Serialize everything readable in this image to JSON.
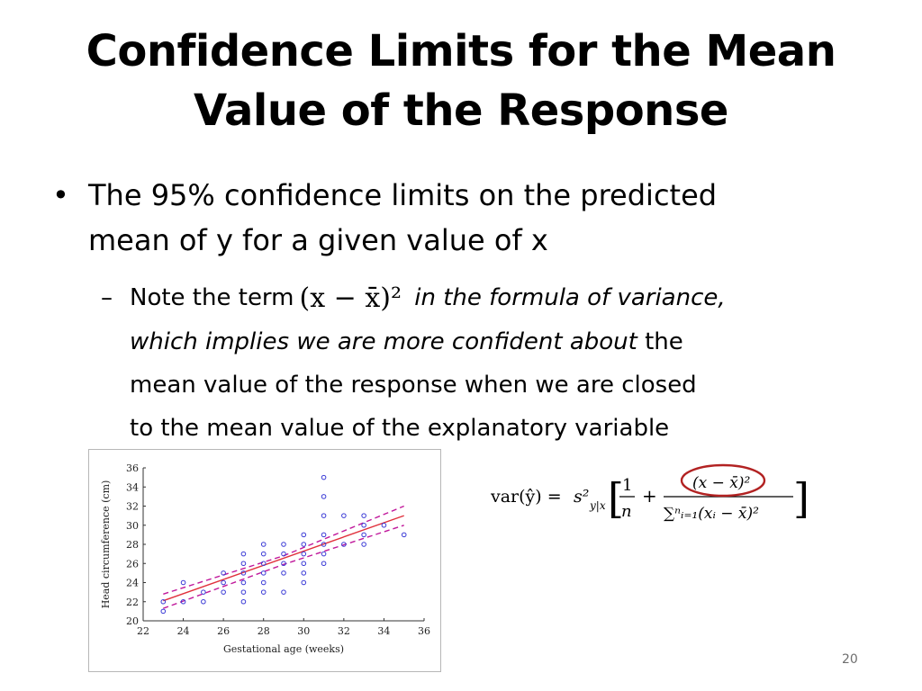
{
  "slide": {
    "title_line1": "Confidence Limits for the Mean",
    "title_line2": "Value of the Response",
    "bullet_symbol": "•",
    "bullet1_line1": "The 95% confidence limits on the predicted",
    "bullet1_line2": "mean of y for a given value of x",
    "sub_dash": "–",
    "sub_note_start": "Note the term",
    "sub_term": "(x − x̄)²",
    "sub_italic_a": "in the formula of variance,",
    "sub_italic_b": "which implies we are more confident about",
    "sub_tail_1": " the",
    "sub_line3": "mean value of the response when we are closed",
    "sub_line4": "to the mean value of the explanatory variable",
    "page_number": "20"
  },
  "formula": {
    "lhs": "var(ŷ) =",
    "coeff": "s²",
    "coeff_sub": "y|x",
    "numerator1": "1",
    "denominator1": "n",
    "plus": "+",
    "numerator2": "(x − x̄)²",
    "denominator2": "∑ⁿᵢ₌₁(xᵢ − x̄)²",
    "circle_color": "#b22222"
  },
  "chart_data": {
    "type": "scatter",
    "title": "",
    "xlabel": "Gestational age (weeks)",
    "ylabel": "Head circumference (cm)",
    "xlim": [
      22,
      36
    ],
    "ylim": [
      20,
      36
    ],
    "xticks": [
      22,
      24,
      26,
      28,
      30,
      32,
      34,
      36
    ],
    "yticks": [
      20,
      22,
      24,
      26,
      28,
      30,
      32,
      34,
      36
    ],
    "grid": false,
    "point_color": "#3b3bd6",
    "fit_color": "#e0303c",
    "band_color": "#c0189b",
    "points": [
      [
        23,
        21
      ],
      [
        23,
        22
      ],
      [
        24,
        22
      ],
      [
        24,
        24
      ],
      [
        25,
        22
      ],
      [
        25,
        23
      ],
      [
        26,
        23
      ],
      [
        26,
        24
      ],
      [
        26,
        25
      ],
      [
        27,
        22
      ],
      [
        27,
        23
      ],
      [
        27,
        24
      ],
      [
        27,
        25
      ],
      [
        27,
        26
      ],
      [
        27,
        27
      ],
      [
        28,
        23
      ],
      [
        28,
        24
      ],
      [
        28,
        25
      ],
      [
        28,
        26
      ],
      [
        28,
        27
      ],
      [
        28,
        28
      ],
      [
        29,
        23
      ],
      [
        29,
        25
      ],
      [
        29,
        26
      ],
      [
        29,
        27
      ],
      [
        29,
        28
      ],
      [
        30,
        24
      ],
      [
        30,
        25
      ],
      [
        30,
        26
      ],
      [
        30,
        27
      ],
      [
        30,
        28
      ],
      [
        30,
        29
      ],
      [
        31,
        26
      ],
      [
        31,
        27
      ],
      [
        31,
        28
      ],
      [
        31,
        29
      ],
      [
        31,
        31
      ],
      [
        31,
        33
      ],
      [
        31,
        35
      ],
      [
        32,
        28
      ],
      [
        32,
        31
      ],
      [
        33,
        28
      ],
      [
        33,
        29
      ],
      [
        33,
        30
      ],
      [
        33,
        31
      ],
      [
        34,
        30
      ],
      [
        35,
        29
      ]
    ],
    "fit_line": [
      [
        23,
        22.1
      ],
      [
        35,
        31.0
      ]
    ],
    "upper_band": [
      [
        23,
        22.8
      ],
      [
        29,
        26.8
      ],
      [
        35,
        32.0
      ]
    ],
    "lower_band": [
      [
        23,
        21.3
      ],
      [
        29,
        25.9
      ],
      [
        35,
        30.0
      ]
    ]
  }
}
